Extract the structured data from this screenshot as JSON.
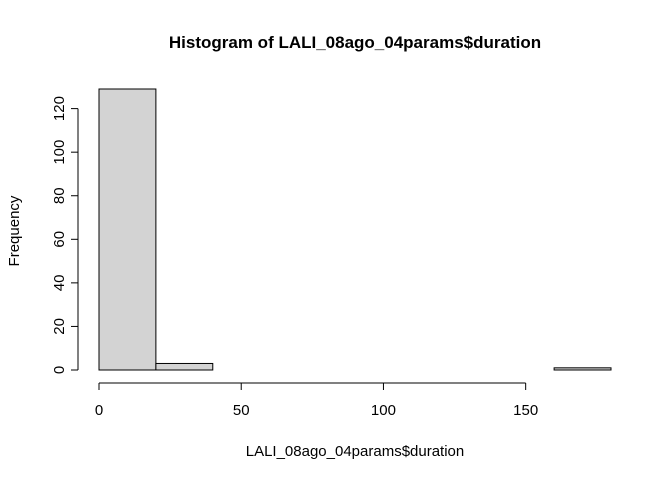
{
  "chart_data": {
    "type": "bar",
    "title": "Histogram of LALI_08ago_04params$duration",
    "xlabel": "LALI_08ago_04params$duration",
    "ylabel": "Frequency",
    "bins": [
      {
        "from": 0,
        "to": 20,
        "count": 129
      },
      {
        "from": 20,
        "to": 40,
        "count": 3
      },
      {
        "from": 40,
        "to": 60,
        "count": 0
      },
      {
        "from": 60,
        "to": 80,
        "count": 0
      },
      {
        "from": 80,
        "to": 100,
        "count": 0
      },
      {
        "from": 100,
        "to": 120,
        "count": 0
      },
      {
        "from": 120,
        "to": 140,
        "count": 0
      },
      {
        "from": 140,
        "to": 160,
        "count": 0
      },
      {
        "from": 160,
        "to": 180,
        "count": 1
      }
    ],
    "xlim": [
      0,
      180
    ],
    "ylim": [
      0,
      129
    ],
    "xticks": [
      0,
      50,
      100,
      150
    ],
    "yticks": [
      0,
      20,
      40,
      60,
      80,
      100,
      120
    ],
    "bar_color": "#d3d3d3",
    "grid": false,
    "legend": "none"
  }
}
